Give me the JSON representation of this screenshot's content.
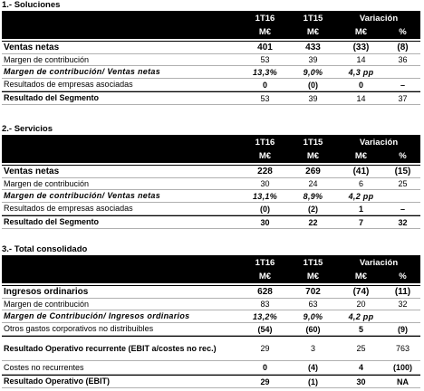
{
  "sections": [
    {
      "title": "1.- Soluciones",
      "header": {
        "columns": [
          "1T16",
          "1T15",
          "Variación"
        ],
        "units": [
          "M€",
          "M€",
          "M€",
          "%"
        ]
      },
      "rows": [
        {
          "label": "Ventas netas",
          "values": [
            "401",
            "433",
            "(33)",
            "(8)"
          ]
        },
        {
          "label": "Margen de contribución",
          "values": [
            "53",
            "39",
            "14",
            "36"
          ]
        },
        {
          "label": "Margen de contribución/ Ventas netas",
          "values": [
            "13,3%",
            "9,0%",
            "4,3 pp"
          ]
        },
        {
          "label": "Resultados de empresas asociadas",
          "values": [
            "0",
            "(0)",
            "0",
            "–"
          ]
        },
        {
          "label": "Resultado del Segmento",
          "values": [
            "53",
            "39",
            "14",
            "37"
          ]
        }
      ]
    },
    {
      "title": "2.- Servicios",
      "header": {
        "columns": [
          "1T16",
          "1T15",
          "Variación"
        ],
        "units": [
          "M€",
          "M€",
          "M€",
          "%"
        ]
      },
      "rows": [
        {
          "label": "Ventas netas",
          "values": [
            "228",
            "269",
            "(41)",
            "(15)"
          ]
        },
        {
          "label": "Margen de contribución",
          "values": [
            "30",
            "24",
            "6",
            "25"
          ]
        },
        {
          "label": "Margen de contribución/ Ventas netas",
          "values": [
            "13,1%",
            "8,9%",
            "4,2 pp"
          ]
        },
        {
          "label": "Resultados de empresas asociadas",
          "values": [
            "(0)",
            "(2)",
            "1",
            "–"
          ]
        },
        {
          "label": "Resultado del Segmento",
          "values": [
            "30",
            "22",
            "7",
            "32"
          ]
        }
      ]
    },
    {
      "title": "3.- Total consolidado",
      "header": {
        "columns": [
          "1T16",
          "1T15",
          "Variación"
        ],
        "units": [
          "M€",
          "M€",
          "M€",
          "%"
        ]
      },
      "rows": [
        {
          "label": "Ingresos ordinarios",
          "values": [
            "628",
            "702",
            "(74)",
            "(11)"
          ]
        },
        {
          "label": "Margen de contribución",
          "values": [
            "83",
            "63",
            "20",
            "32"
          ]
        },
        {
          "label": "Margen de Contribución/ Ingresos ordinarios",
          "values": [
            "13,2%",
            "9,0%",
            "4,2 pp"
          ]
        },
        {
          "label": "Otros gastos corporativos no distribuibles",
          "values": [
            "(54)",
            "(60)",
            "5",
            "(9)"
          ]
        },
        {
          "label": "Resultado Operativo recurrente (EBIT a/costes no rec.)",
          "values": [
            "29",
            "3",
            "25",
            "763"
          ]
        },
        {
          "label": "Costes no recurrentes",
          "values": [
            "0",
            "(4)",
            "4",
            "(100)"
          ]
        },
        {
          "label": "Resultado Operativo (EBIT)",
          "values": [
            "29",
            "(1)",
            "30",
            "NA"
          ]
        }
      ]
    }
  ]
}
